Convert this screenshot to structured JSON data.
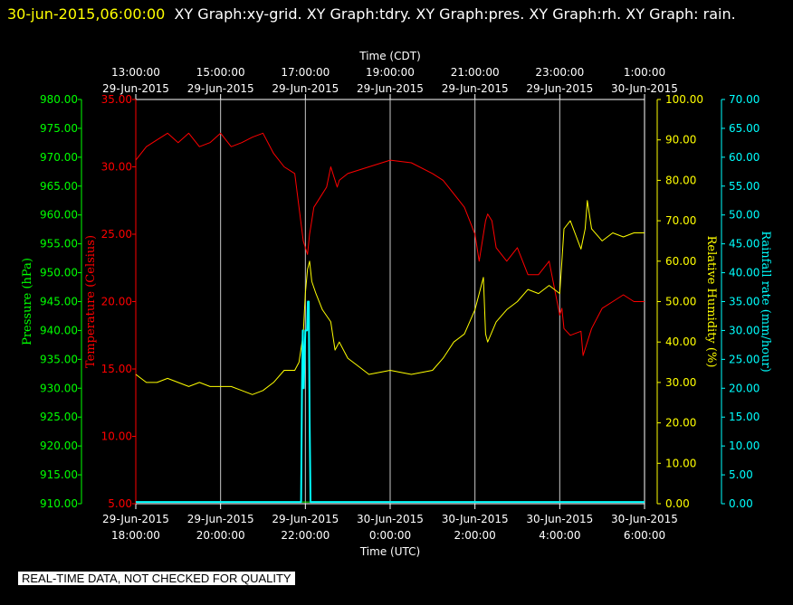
{
  "header": {
    "timestamp": "30-jun-2015,06:00:00",
    "graphs": "XY Graph:xy-grid.  XY Graph:tdry.  XY Graph:pres.  XY Graph:rh.  XY Graph: rain."
  },
  "disclaimer": "REAL-TIME DATA, NOT CHECKED FOR QUALITY",
  "chart_data": {
    "type": "line",
    "top_axis": {
      "title": "Time (CDT)",
      "ticks": [
        {
          "x": 0,
          "time": "13:00:00",
          "date": "29-Jun-2015"
        },
        {
          "x": 2,
          "time": "15:00:00",
          "date": "29-Jun-2015"
        },
        {
          "x": 4,
          "time": "17:00:00",
          "date": "29-Jun-2015"
        },
        {
          "x": 6,
          "time": "19:00:00",
          "date": "29-Jun-2015"
        },
        {
          "x": 8,
          "time": "21:00:00",
          "date": "29-Jun-2015"
        },
        {
          "x": 10,
          "time": "23:00:00",
          "date": "29-Jun-2015"
        },
        {
          "x": 12,
          "time": "1:00:00",
          "date": "30-Jun-2015"
        }
      ]
    },
    "bottom_axis": {
      "title": "Time (UTC)",
      "ticks": [
        {
          "x": 0,
          "date": "29-Jun-2015",
          "time": "18:00:00"
        },
        {
          "x": 2,
          "date": "29-Jun-2015",
          "time": "20:00:00"
        },
        {
          "x": 4,
          "date": "29-Jun-2015",
          "time": "22:00:00"
        },
        {
          "x": 6,
          "date": "30-Jun-2015",
          "time": "0:00:00"
        },
        {
          "x": 8,
          "date": "30-Jun-2015",
          "time": "2:00:00"
        },
        {
          "x": 10,
          "date": "30-Jun-2015",
          "time": "4:00:00"
        },
        {
          "x": 12,
          "date": "30-Jun-2015",
          "time": "6:00:00"
        }
      ]
    },
    "xlim": [
      0,
      12
    ],
    "grid": true,
    "axes": {
      "pressure": {
        "label": "Pressure (hPa)",
        "color": "#00ff00",
        "ylim": [
          910,
          980
        ],
        "ticks": [
          "910.00",
          "915.00",
          "920.00",
          "925.00",
          "930.00",
          "935.00",
          "940.00",
          "945.00",
          "950.00",
          "955.00",
          "960.00",
          "965.00",
          "970.00",
          "975.00",
          "980.00"
        ]
      },
      "temperature": {
        "label": "Temperature (Celsius)",
        "color": "#ff0000",
        "ylim": [
          5,
          35
        ],
        "ticks": [
          "5.00",
          "10.00",
          "15.00",
          "20.00",
          "25.00",
          "30.00",
          "35.00"
        ]
      },
      "humidity": {
        "label": "Relative Humidity (%)",
        "color": "#ffff00",
        "ylim": [
          0,
          100
        ],
        "ticks": [
          "0.00",
          "10.00",
          "20.00",
          "30.00",
          "40.00",
          "50.00",
          "60.00",
          "70.00",
          "80.00",
          "90.00",
          "100.00"
        ]
      },
      "rain": {
        "label": "Rainfall rate (mm/hour)",
        "color": "#00ffff",
        "ylim": [
          0,
          70
        ],
        "ticks": [
          "0.00",
          "5.00",
          "10.00",
          "15.00",
          "20.00",
          "25.00",
          "30.00",
          "35.00",
          "40.00",
          "45.00",
          "50.00",
          "55.00",
          "60.00",
          "65.00",
          "70.00"
        ]
      }
    },
    "series": [
      {
        "name": "Temperature",
        "axis": "temperature",
        "color": "#ff0000",
        "x": [
          0,
          0.25,
          0.5,
          0.75,
          1,
          1.25,
          1.5,
          1.75,
          2,
          2.25,
          2.5,
          2.75,
          3,
          3.25,
          3.5,
          3.75,
          3.85,
          3.95,
          4.0,
          4.05,
          4.1,
          4.15,
          4.2,
          4.3,
          4.5,
          4.6,
          4.75,
          4.8,
          5,
          5.5,
          6,
          6.5,
          7,
          7.25,
          7.5,
          7.75,
          8,
          8.1,
          8.25,
          8.3,
          8.4,
          8.5,
          8.75,
          9,
          9.25,
          9.5,
          9.75,
          10,
          10.05,
          10.1,
          10.25,
          10.5,
          10.55,
          10.65,
          10.75,
          11,
          11.25,
          11.5,
          11.75,
          12
        ],
        "y": [
          30.5,
          31.5,
          32,
          32.5,
          31.8,
          32.5,
          31.5,
          31.8,
          32.5,
          31.5,
          31.8,
          32.2,
          32.5,
          31,
          30,
          29.5,
          27,
          24.5,
          24,
          23.5,
          25,
          26,
          27,
          27.5,
          28.5,
          30,
          28.5,
          29,
          29.5,
          30,
          30.5,
          30.3,
          29.5,
          29,
          28,
          27,
          25,
          23,
          26,
          26.5,
          26,
          24,
          23,
          24,
          22,
          22,
          23,
          19,
          19.5,
          18,
          17.5,
          17.8,
          16,
          17,
          18,
          19.5,
          20,
          20.5,
          20,
          20
        ]
      },
      {
        "name": "Relative Humidity",
        "axis": "humidity",
        "color": "#ffff00",
        "x": [
          0,
          0.25,
          0.5,
          0.75,
          1,
          1.25,
          1.5,
          1.75,
          2,
          2.25,
          2.5,
          2.75,
          3,
          3.25,
          3.5,
          3.75,
          3.85,
          3.95,
          4.0,
          4.05,
          4.1,
          4.15,
          4.25,
          4.4,
          4.6,
          4.7,
          4.8,
          5,
          5.25,
          5.5,
          6,
          6.5,
          7,
          7.25,
          7.5,
          7.75,
          8,
          8.2,
          8.25,
          8.3,
          8.5,
          8.75,
          9,
          9.25,
          9.5,
          9.75,
          10,
          10.05,
          10.1,
          10.25,
          10.5,
          10.6,
          10.65,
          10.75,
          11,
          11.25,
          11.5,
          11.75,
          12
        ],
        "y": [
          32,
          30,
          30,
          31,
          30,
          29,
          30,
          29,
          29,
          29,
          28,
          27,
          28,
          30,
          33,
          33,
          35,
          42,
          52,
          58,
          60,
          55,
          52,
          48,
          45,
          38,
          40,
          36,
          34,
          32,
          33,
          32,
          33,
          36,
          40,
          42,
          48,
          56,
          42,
          40,
          45,
          48,
          50,
          53,
          52,
          54,
          52,
          60,
          68,
          70,
          63,
          68,
          75,
          68,
          65,
          67,
          66,
          67,
          67
        ]
      },
      {
        "name": "Pressure",
        "axis": "pressure",
        "color": "#00ff00",
        "x": [
          0,
          12
        ],
        "y": [
          910.3,
          910.3
        ]
      },
      {
        "name": "Rainfall rate",
        "axis": "rain",
        "color": "#00ffff",
        "x": [
          0,
          3.9,
          3.92,
          3.94,
          3.96,
          4.0,
          4.04,
          4.06,
          4.08,
          4.1,
          4.12,
          12
        ],
        "y": [
          0.3,
          0.3,
          20,
          30,
          20,
          30,
          30,
          35,
          35,
          15,
          0.3,
          0.3
        ]
      }
    ]
  }
}
